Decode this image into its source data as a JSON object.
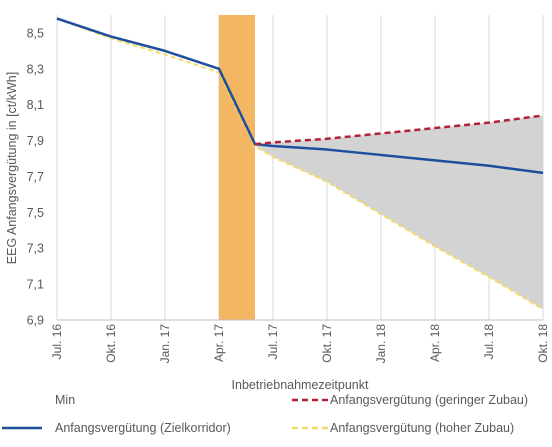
{
  "chart_data": {
    "type": "line",
    "ylabel": "EEG Anfangsvergütung in [ct/kWh]",
    "xlabel": "Inbetriebnahmezeitpunkt",
    "ylim": [
      6.9,
      8.6
    ],
    "yticks": [
      "6,9",
      "7,1",
      "7,3",
      "7,5",
      "7,7",
      "7,9",
      "8,1",
      "8,3",
      "8,5"
    ],
    "ytick_values": [
      6.9,
      7.1,
      7.3,
      7.5,
      7.7,
      7.9,
      8.1,
      8.3,
      8.5
    ],
    "xticks": [
      "Jul. 16",
      "Okt. 16",
      "Jan. 17",
      "Apr. 17",
      "Jul. 17",
      "Okt. 17",
      "Jan. 18",
      "Apr. 18",
      "Jul. 18",
      "Okt. 18"
    ],
    "grid": "vertical",
    "highlight": {
      "from": "Apr. 17",
      "to": "Jun. 17",
      "color": "#f3b663"
    },
    "corridor_fill_color": "#d3d3d3",
    "series": [
      {
        "name": "Anfangsvergütung (Zielkorridor)",
        "color": "#1f4e9c",
        "style": "solid",
        "x": [
          "Jul. 16",
          "Okt. 16",
          "Jan. 17",
          "Apr. 17",
          "Jun. 17",
          "Jul. 17",
          "Okt. 17",
          "Jan. 18",
          "Apr. 18",
          "Jul. 18",
          "Okt. 18"
        ],
        "values": [
          8.58,
          8.48,
          8.4,
          8.3,
          7.88,
          7.87,
          7.85,
          7.82,
          7.79,
          7.76,
          7.72
        ]
      },
      {
        "name": "Anfangsvergütung (geringer Zubau)",
        "color": "#b22236",
        "style": "dashed",
        "x": [
          "Jun. 17",
          "Jul. 17",
          "Okt. 17",
          "Jan. 18",
          "Apr. 18",
          "Jul. 18",
          "Okt. 18"
        ],
        "values": [
          7.88,
          7.89,
          7.91,
          7.94,
          7.97,
          8.0,
          8.04
        ]
      },
      {
        "name": "Anfangsvergütung (hoher Zubau)",
        "color": "#f2dc6b",
        "style": "dashed",
        "x": [
          "Jul. 16",
          "Okt. 16",
          "Jan. 17",
          "Apr. 17",
          "Jun. 17",
          "Jul. 17",
          "Okt. 17",
          "Jan. 18",
          "Apr. 18",
          "Jul. 18",
          "Okt. 18"
        ],
        "values": [
          8.58,
          8.47,
          8.38,
          8.28,
          7.87,
          7.81,
          7.67,
          7.49,
          7.31,
          7.14,
          6.96
        ]
      }
    ],
    "legend": [
      {
        "label": "Min",
        "color": "#ffffff",
        "style": "none"
      },
      {
        "label": "Anfangsvergütung (geringer Zubau)",
        "color": "#b22236",
        "style": "dashed"
      },
      {
        "label": "Anfangsvergütung (Zielkorridor)",
        "color": "#1f4e9c",
        "style": "solid"
      },
      {
        "label": "Anfangsvergütung (hoher Zubau)",
        "color": "#f2dc6b",
        "style": "dashed"
      }
    ]
  }
}
